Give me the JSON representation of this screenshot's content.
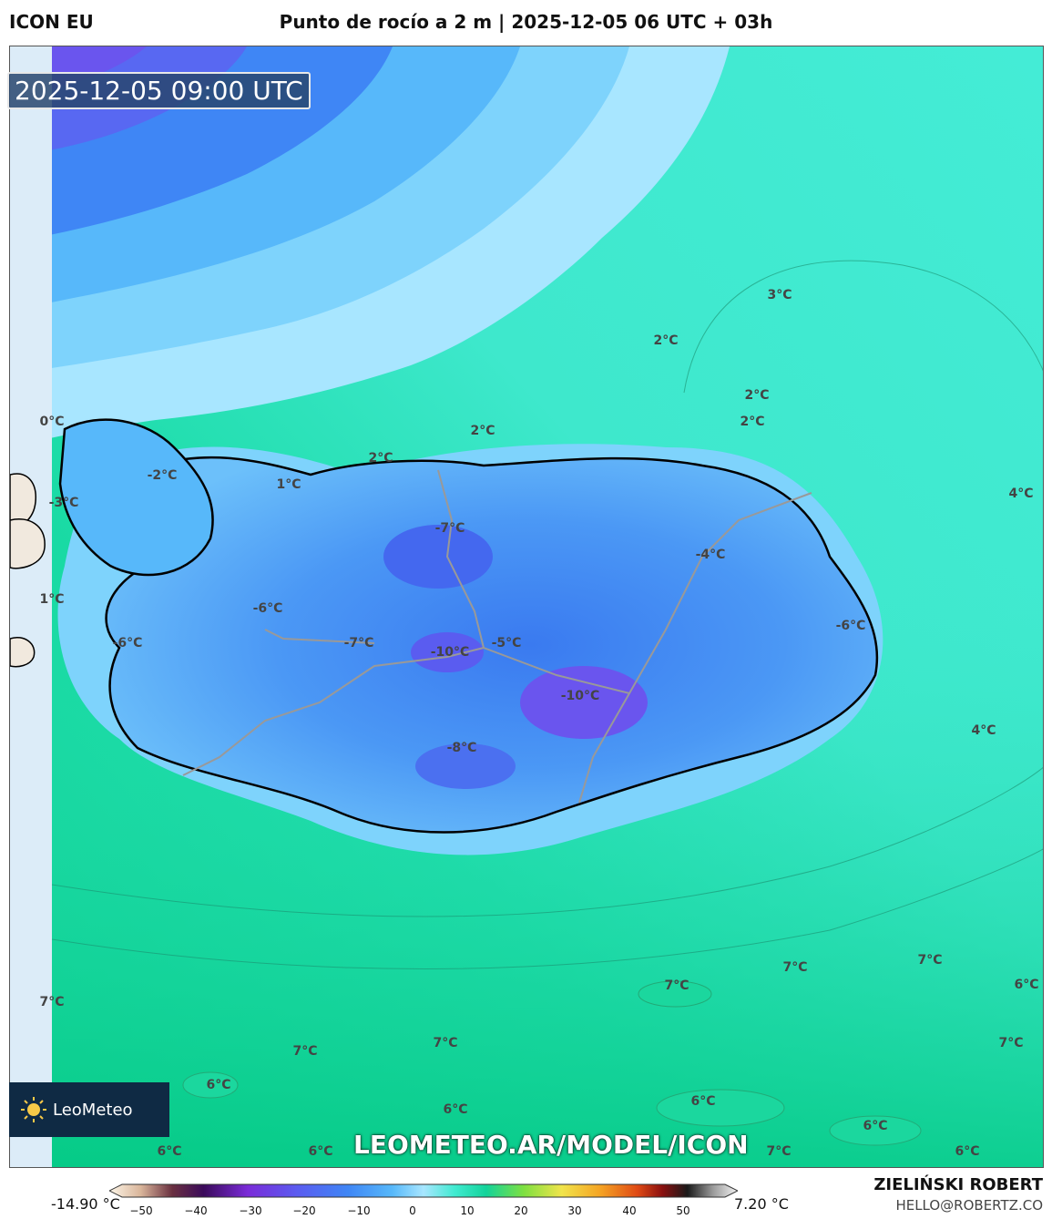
{
  "header": {
    "model": "ICON EU",
    "title": "Punto de rocío a 2 m | 2025-12-05 06 UTC + 03h"
  },
  "timestamp": "2025-12-05 09:00 UTC",
  "contour_labels": [
    "0°C",
    "-2°C",
    "-3°C",
    "1°C",
    "-6°C",
    "2°C",
    "1°C",
    "2°C",
    "-7°C",
    "-6°C",
    "-7°C",
    "-10°C",
    "-5°C",
    "-10°C",
    "-8°C",
    "-4°C",
    "-6°C",
    "2°C",
    "2°C",
    "3°C",
    "2°C",
    "4°C",
    "4°C",
    "7°C",
    "7°C",
    "7°C",
    "7°C",
    "7°C",
    "7°C",
    "6°C",
    "7°C",
    "6°C",
    "6°C",
    "6°C",
    "6°C",
    "6°C",
    "7°C",
    "6°C",
    "6°C"
  ],
  "logo_text": "LeoMeteo",
  "site_watermark": "LEOMETEO.AR/MODEL/ICON",
  "colorbar": {
    "min_label": "-14.90 °C",
    "max_label": "7.20 °C",
    "ticks": [
      "−50",
      "−40",
      "−30",
      "−20",
      "−10",
      "0",
      "10",
      "20",
      "30",
      "40",
      "50"
    ]
  },
  "author": "ZIELIŃSKI ROBERT",
  "email": "HELLO@ROBERTZ.CO",
  "colors": {
    "deep": "#5a5cf0",
    "cold": "#3f86f5",
    "cool": "#57b8fa",
    "light": "#a8e6ff",
    "teal": "#40ead0",
    "green": "#13d39a",
    "coast": "#000000"
  }
}
